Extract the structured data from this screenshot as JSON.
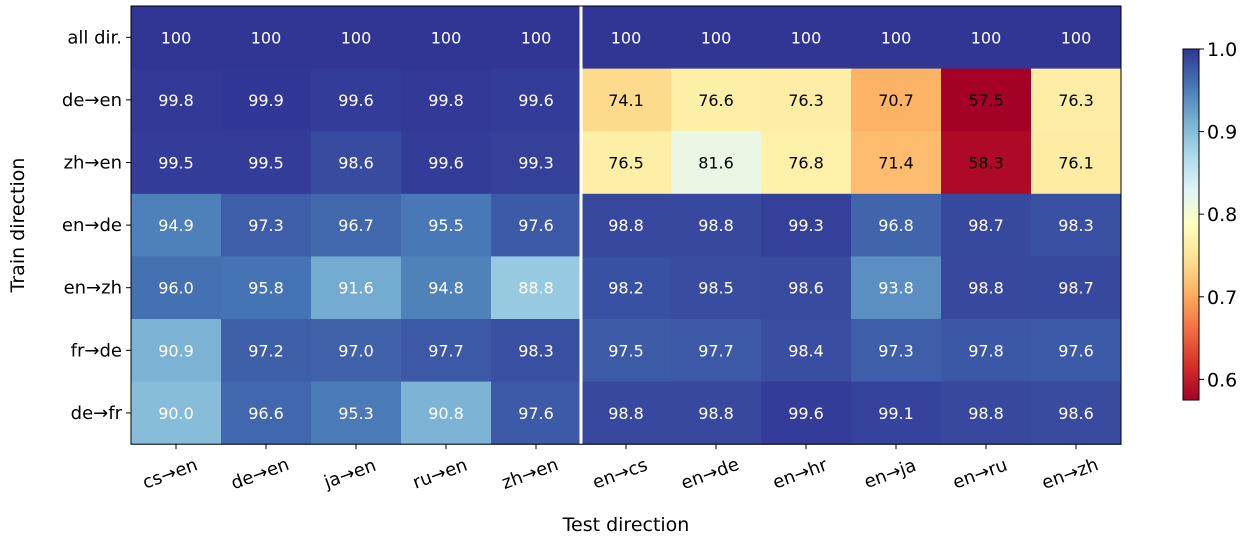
{
  "chart_data": {
    "type": "heatmap",
    "title": "",
    "xlabel": "Test direction",
    "ylabel": "Train direction",
    "x_categories": [
      "cs→en",
      "de→en",
      "ja→en",
      "ru→en",
      "zh→en",
      "en→cs",
      "en→de",
      "en→hr",
      "en→ja",
      "en→ru",
      "en→zh"
    ],
    "y_categories": [
      "all dir.",
      "de→en",
      "zh→en",
      "en→de",
      "en→zh",
      "fr→de",
      "de→fr"
    ],
    "values": [
      [
        100,
        100,
        100,
        100,
        100,
        100,
        100,
        100,
        100,
        100,
        100
      ],
      [
        99.8,
        99.9,
        99.6,
        99.8,
        99.6,
        74.1,
        76.6,
        76.3,
        70.7,
        57.5,
        76.3
      ],
      [
        99.5,
        99.5,
        98.6,
        99.6,
        99.3,
        76.5,
        81.6,
        76.8,
        71.4,
        58.3,
        76.1
      ],
      [
        94.9,
        97.3,
        96.7,
        95.5,
        97.6,
        98.8,
        98.8,
        99.3,
        96.8,
        98.7,
        98.3
      ],
      [
        96.0,
        95.8,
        91.6,
        94.8,
        88.8,
        98.2,
        98.5,
        98.6,
        93.8,
        98.8,
        98.7
      ],
      [
        90.9,
        97.2,
        97.0,
        97.7,
        98.3,
        97.5,
        97.7,
        98.4,
        97.3,
        97.8,
        97.6
      ],
      [
        90.0,
        96.6,
        95.3,
        90.8,
        97.6,
        98.8,
        98.8,
        99.6,
        99.1,
        98.8,
        98.6
      ]
    ],
    "value_labels": [
      [
        "100",
        "100",
        "100",
        "100",
        "100",
        "100",
        "100",
        "100",
        "100",
        "100",
        "100"
      ],
      [
        "99.8",
        "99.9",
        "99.6",
        "99.8",
        "99.6",
        "74.1",
        "76.6",
        "76.3",
        "70.7",
        "57.5",
        "76.3"
      ],
      [
        "99.5",
        "99.5",
        "98.6",
        "99.6",
        "99.3",
        "76.5",
        "81.6",
        "76.8",
        "71.4",
        "58.3",
        "76.1"
      ],
      [
        "94.9",
        "97.3",
        "96.7",
        "95.5",
        "97.6",
        "98.8",
        "98.8",
        "99.3",
        "96.8",
        "98.7",
        "98.3"
      ],
      [
        "96.0",
        "95.8",
        "91.6",
        "94.8",
        "88.8",
        "98.2",
        "98.5",
        "98.6",
        "93.8",
        "98.8",
        "98.7"
      ],
      [
        "90.9",
        "97.2",
        "97.0",
        "97.7",
        "98.3",
        "97.5",
        "97.7",
        "98.4",
        "97.3",
        "97.8",
        "97.6"
      ],
      [
        "90.0",
        "96.6",
        "95.3",
        "90.8",
        "97.6",
        "98.8",
        "98.8",
        "99.6",
        "99.1",
        "98.8",
        "98.6"
      ]
    ],
    "separator_after_column": 5,
    "colormap": "RdYlBu",
    "colormap_stops": [
      "#a50026",
      "#d73027",
      "#f46d43",
      "#fdae61",
      "#fee090",
      "#ffffbf",
      "#e0f3f8",
      "#abd9e9",
      "#74add1",
      "#4575b4",
      "#313695"
    ],
    "colorbar": {
      "range": [
        0.575,
        1.0
      ],
      "ticks": [
        0.6,
        0.7,
        0.8,
        0.9,
        1.0
      ],
      "tick_labels": [
        "0.6",
        "0.7",
        "0.8",
        "0.9",
        "1.0"
      ]
    }
  }
}
